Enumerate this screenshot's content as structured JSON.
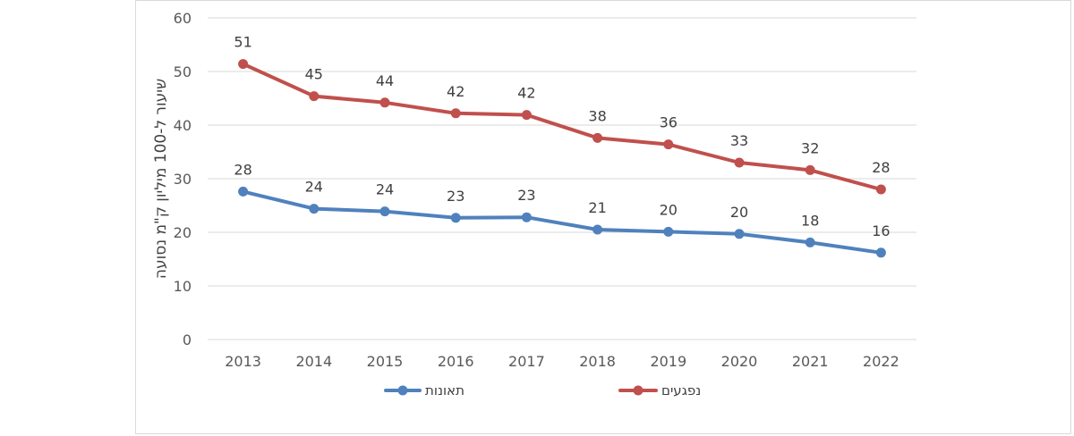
{
  "chart_data": {
    "type": "line",
    "ylabel": "שיעור ל-100 מיליון ק\"מ נסועה",
    "xlabel": "",
    "title": "",
    "ylim": [
      0,
      60
    ],
    "yticks": [
      0,
      10,
      20,
      30,
      40,
      50,
      60
    ],
    "grid": true,
    "legend_position": "bottom",
    "categories": [
      "2013",
      "2014",
      "2015",
      "2016",
      "2017",
      "2018",
      "2019",
      "2020",
      "2021",
      "2022"
    ],
    "series": [
      {
        "name": "תאונות",
        "color": "#4f81bd",
        "values": [
          27.6,
          24.4,
          23.9,
          22.7,
          22.8,
          20.5,
          20.1,
          19.7,
          18.1,
          16.2
        ],
        "labels": [
          "28",
          "24",
          "24",
          "23",
          "23",
          "21",
          "20",
          "20",
          "18",
          "16"
        ]
      },
      {
        "name": "נפגעים",
        "color": "#c0504d",
        "values": [
          51.4,
          45.4,
          44.2,
          42.2,
          41.9,
          37.6,
          36.4,
          33.0,
          31.6,
          28.0
        ],
        "labels": [
          "51",
          "45",
          "44",
          "42",
          "42",
          "38",
          "36",
          "33",
          "32",
          "28"
        ]
      }
    ]
  }
}
